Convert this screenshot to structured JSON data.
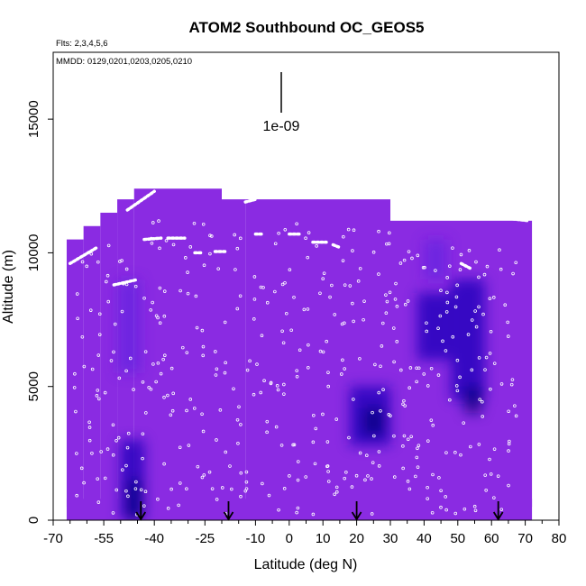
{
  "chart_data": {
    "type": "heatmap",
    "title": "ATOM2 Southbound OC_GEOS5",
    "note_flights": "Flts: 2,3,4,5,6",
    "note_dates": "MMDD: 0129,0201,0203,0205,0210",
    "xlabel": "Latitude (deg N)",
    "ylabel": "Altitude (m)",
    "xlim": [
      -70,
      80
    ],
    "ylim": [
      0,
      17500
    ],
    "x_ticks": [
      -70,
      -55,
      -40,
      -25,
      -10,
      0,
      10,
      20,
      30,
      40,
      50,
      60,
      70,
      80
    ],
    "x_tick_labels": [
      "-70",
      "-55",
      "-40",
      "-25",
      "-10",
      "0",
      "10",
      "20",
      "30",
      "40",
      "50",
      "60",
      "70",
      "80"
    ],
    "x_minor_ticks": [
      -65,
      -60,
      -50,
      -45,
      -35,
      -30,
      -20,
      -15,
      -5,
      5,
      15,
      25,
      35,
      45,
      55,
      65,
      75
    ],
    "y_ticks": [
      0,
      5000,
      10000,
      15000
    ],
    "y_tick_labels": [
      "0",
      "5000",
      "10000",
      "15000"
    ],
    "scale_bar_label": "1e-09",
    "arrow_latitudes": [
      -44,
      -18,
      20,
      62
    ],
    "colors": {
      "background_field": "#8a2be2",
      "dark_field": "#2200bb",
      "darkest_field": "#0a0080",
      "track": "#ffffff"
    },
    "field_columns": [
      {
        "lat0": -66,
        "lat1": -61,
        "alt_top": 10500
      },
      {
        "lat0": -61,
        "lat1": -56,
        "alt_top": 11000
      },
      {
        "lat0": -56,
        "lat1": -51,
        "alt_top": 11500
      },
      {
        "lat0": -51,
        "lat1": -46,
        "alt_top": 12000
      },
      {
        "lat0": -46,
        "lat1": -20,
        "alt_top": 12400
      },
      {
        "lat0": -20,
        "lat1": -13,
        "alt_top": 12000
      },
      {
        "lat0": -13,
        "lat1": 30,
        "alt_top": 12000
      },
      {
        "lat0": 30,
        "lat1": 72,
        "alt_top": 11200
      }
    ],
    "dark_patches": [
      {
        "lat0": -50,
        "lat1": -43,
        "alt0": 0,
        "alt1": 3000,
        "level": 2
      },
      {
        "lat0": -48,
        "lat1": -44,
        "alt0": 0,
        "alt1": 1500,
        "level": 3
      },
      {
        "lat0": -51,
        "lat1": -44,
        "alt0": 5500,
        "alt1": 9000,
        "level": 1
      },
      {
        "lat0": 18,
        "lat1": 30,
        "alt0": 2800,
        "alt1": 5000,
        "level": 2
      },
      {
        "lat0": 22,
        "lat1": 28,
        "alt0": 3200,
        "alt1": 4200,
        "level": 3
      },
      {
        "lat0": 38,
        "lat1": 48,
        "alt0": 6000,
        "alt1": 8500,
        "level": 2
      },
      {
        "lat0": 48,
        "lat1": 58,
        "alt0": 4500,
        "alt1": 9000,
        "level": 2
      },
      {
        "lat0": 52,
        "lat1": 57,
        "alt0": 4000,
        "alt1": 5000,
        "level": 3
      },
      {
        "lat0": 40,
        "lat1": 47,
        "alt0": 9000,
        "alt1": 10500,
        "level": 1
      }
    ],
    "track_segments": [
      {
        "lat0": -65,
        "alt0": 9600,
        "lat1": -57,
        "alt1": 10200
      },
      {
        "lat0": -52,
        "alt0": 8800,
        "lat1": -45,
        "alt1": 9000
      },
      {
        "lat0": -48,
        "alt0": 11600,
        "lat1": -40,
        "alt1": 12300
      },
      {
        "lat0": -43,
        "alt0": 10500,
        "lat1": -38,
        "alt1": 10550
      },
      {
        "lat0": -36,
        "alt0": 10550,
        "lat1": -31,
        "alt1": 10550
      },
      {
        "lat0": -28,
        "alt0": 10000,
        "lat1": -26,
        "alt1": 10000
      },
      {
        "lat0": -22,
        "alt0": 10050,
        "lat1": -19,
        "alt1": 10050
      },
      {
        "lat0": -13,
        "alt0": 11900,
        "lat1": -10,
        "alt1": 12000
      },
      {
        "lat0": -10,
        "alt0": 10700,
        "lat1": -8,
        "alt1": 10700
      },
      {
        "lat0": 0,
        "alt0": 10700,
        "lat1": 3,
        "alt1": 10700
      },
      {
        "lat0": 7,
        "alt0": 10400,
        "lat1": 11,
        "alt1": 10400
      },
      {
        "lat0": 13,
        "alt0": 10300,
        "lat1": 15,
        "alt1": 10200
      },
      {
        "lat0": 51,
        "alt0": 9600,
        "lat1": 54,
        "alt1": 9400
      },
      {
        "lat0": 64,
        "alt0": 11300,
        "lat1": 71,
        "alt1": 11200
      }
    ]
  }
}
